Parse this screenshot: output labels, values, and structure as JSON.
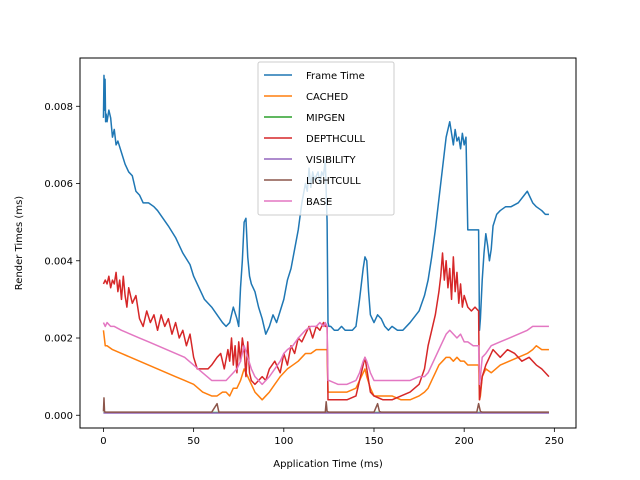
{
  "chart_data": {
    "type": "line",
    "xlabel": "Application Time (ms)",
    "ylabel": "Render Times (ms)",
    "xlim": [
      -13,
      262
    ],
    "ylim": [
      -0.00033,
      0.00925
    ],
    "xticks": [
      0,
      50,
      100,
      150,
      200,
      250
    ],
    "yticks": [
      0.0,
      0.002,
      0.004,
      0.006,
      0.008
    ],
    "xtick_labels": [
      "0",
      "50",
      "100",
      "150",
      "200",
      "250"
    ],
    "ytick_labels": [
      "0.000",
      "0.002",
      "0.004",
      "0.006",
      "0.008"
    ],
    "grid": false,
    "legend": "upper center",
    "series": [
      {
        "name": "Frame Time",
        "color": "#1f77b4",
        "x": [
          0,
          0.3,
          0.6,
          0.9,
          1.2,
          1.5,
          2,
          3,
          4,
          5,
          6,
          7,
          8,
          10,
          12,
          14,
          16,
          18,
          20,
          22,
          25,
          28,
          30,
          33,
          36,
          40,
          44,
          48,
          50,
          53,
          56,
          60,
          63,
          66,
          68,
          70,
          72,
          74,
          75,
          76,
          77,
          78,
          79,
          80,
          81,
          82,
          84,
          86,
          88,
          90,
          92,
          94,
          96,
          98,
          100,
          102,
          104,
          106,
          108,
          110,
          112,
          113,
          114,
          115,
          116,
          117,
          118,
          119,
          120,
          121,
          122,
          123,
          124,
          124.5,
          125,
          126,
          128,
          130,
          132,
          134,
          136,
          138,
          140,
          142,
          144,
          145,
          146,
          147,
          148,
          149,
          150,
          152,
          154,
          156,
          158,
          160,
          163,
          166,
          170,
          175,
          178,
          180,
          182,
          184,
          186,
          188,
          189,
          190,
          191,
          192,
          193,
          194,
          195,
          196,
          197,
          198,
          199,
          200,
          201,
          202,
          204,
          206,
          208,
          208.5,
          209,
          210,
          211,
          212,
          213,
          214,
          215,
          216,
          218,
          220,
          223,
          226,
          230,
          235,
          238,
          240,
          243,
          245,
          247
        ],
        "y": [
          0.0077,
          0.0088,
          0.0079,
          0.0087,
          0.0076,
          0.0078,
          0.0076,
          0.0079,
          0.0077,
          0.0072,
          0.0074,
          0.007,
          0.0071,
          0.0068,
          0.0065,
          0.0063,
          0.0062,
          0.0058,
          0.0057,
          0.0055,
          0.0055,
          0.0054,
          0.0053,
          0.0051,
          0.0049,
          0.0046,
          0.0042,
          0.0039,
          0.0036,
          0.0033,
          0.003,
          0.0028,
          0.0026,
          0.0024,
          0.0023,
          0.0024,
          0.0028,
          0.0025,
          0.0023,
          0.0033,
          0.004,
          0.005,
          0.0051,
          0.0041,
          0.0036,
          0.0034,
          0.0032,
          0.0028,
          0.0025,
          0.0021,
          0.0023,
          0.0026,
          0.0024,
          0.0027,
          0.003,
          0.0035,
          0.0038,
          0.0043,
          0.0048,
          0.0055,
          0.006,
          0.0058,
          0.0064,
          0.0059,
          0.0063,
          0.0061,
          0.0062,
          0.0063,
          0.006,
          0.0063,
          0.0062,
          0.0066,
          0.005,
          0.0024,
          0.0023,
          0.0023,
          0.0022,
          0.0022,
          0.0023,
          0.0022,
          0.0022,
          0.0022,
          0.0023,
          0.003,
          0.0038,
          0.0041,
          0.004,
          0.0032,
          0.0026,
          0.0025,
          0.0024,
          0.0026,
          0.0025,
          0.0023,
          0.0022,
          0.0023,
          0.0022,
          0.0022,
          0.0024,
          0.0027,
          0.0031,
          0.0035,
          0.0041,
          0.0048,
          0.0056,
          0.0064,
          0.0068,
          0.0072,
          0.0074,
          0.0076,
          0.0073,
          0.007,
          0.0074,
          0.0071,
          0.0072,
          0.0069,
          0.0073,
          0.007,
          0.0072,
          0.0048,
          0.0048,
          0.0048,
          0.0048,
          0.0022,
          0.0025,
          0.0035,
          0.0042,
          0.0047,
          0.0044,
          0.004,
          0.0043,
          0.0049,
          0.0052,
          0.0053,
          0.0054,
          0.0054,
          0.0055,
          0.0058,
          0.0055,
          0.0054,
          0.0053,
          0.0052,
          0.0052
        ]
      },
      {
        "name": "CACHED",
        "color": "#ff7f0e",
        "x": [
          0,
          0.5,
          1,
          2,
          5,
          10,
          15,
          20,
          25,
          30,
          35,
          40,
          45,
          50,
          55,
          60,
          63,
          66,
          68,
          70,
          72,
          74,
          76,
          78,
          80,
          82,
          84,
          86,
          88,
          90,
          92,
          95,
          98,
          100,
          102,
          105,
          108,
          110,
          112,
          115,
          118,
          120,
          122,
          123,
          124,
          124.5,
          125,
          130,
          135,
          140,
          142,
          144,
          145,
          146,
          148,
          150,
          155,
          160,
          165,
          170,
          175,
          178,
          180,
          182,
          184,
          186,
          188,
          190,
          192,
          194,
          196,
          198,
          200,
          202,
          205,
          208,
          208.5,
          209,
          210,
          212,
          215,
          220,
          225,
          230,
          235,
          238,
          240,
          243,
          245,
          247
        ],
        "y": [
          0.0022,
          0.002,
          0.0018,
          0.0018,
          0.0017,
          0.0016,
          0.0015,
          0.0014,
          0.0013,
          0.0012,
          0.0011,
          0.001,
          0.0009,
          0.0008,
          0.0006,
          0.0005,
          0.0005,
          0.0006,
          0.0006,
          0.0005,
          0.0007,
          0.0007,
          0.0009,
          0.0012,
          0.001,
          0.0008,
          0.0006,
          0.0005,
          0.0004,
          0.0005,
          0.0006,
          0.0008,
          0.001,
          0.0011,
          0.0012,
          0.0013,
          0.0014,
          0.0015,
          0.0016,
          0.0016,
          0.0017,
          0.0017,
          0.0017,
          0.0017,
          0.0017,
          0.0006,
          0.0006,
          0.0006,
          0.0006,
          0.0007,
          0.0009,
          0.0011,
          0.0012,
          0.001,
          0.0007,
          0.0005,
          0.0005,
          0.0005,
          0.0004,
          0.0004,
          0.0005,
          0.0006,
          0.0007,
          0.0009,
          0.0011,
          0.0013,
          0.0014,
          0.0015,
          0.0015,
          0.0014,
          0.0015,
          0.0014,
          0.0014,
          0.0013,
          0.0013,
          0.0013,
          0.0004,
          0.0005,
          0.001,
          0.0012,
          0.0011,
          0.0013,
          0.0014,
          0.0015,
          0.0016,
          0.0017,
          0.0018,
          0.0017,
          0.0017,
          0.0017
        ]
      },
      {
        "name": "MIPGEN",
        "color": "#2ca02c",
        "x": [
          0,
          50,
          100,
          150,
          200,
          247
        ],
        "y": [
          7e-05,
          7e-05,
          7e-05,
          7e-05,
          7e-05,
          7e-05
        ]
      },
      {
        "name": "DEPTHCULL",
        "color": "#d62728",
        "x": [
          0,
          1,
          2,
          3,
          4,
          5,
          6,
          7,
          8,
          9,
          10,
          11,
          12,
          13,
          14,
          16,
          18,
          20,
          22,
          24,
          26,
          28,
          30,
          32,
          34,
          36,
          38,
          40,
          42,
          44,
          46,
          48,
          50,
          52,
          55,
          58,
          60,
          63,
          65,
          67,
          69,
          70,
          71,
          72,
          73,
          74,
          75,
          76,
          77,
          78,
          79,
          80,
          81,
          82,
          84,
          86,
          88,
          90,
          92,
          95,
          98,
          100,
          102,
          104,
          106,
          108,
          110,
          112,
          114,
          116,
          118,
          120,
          122,
          123,
          124,
          124.5,
          125,
          130,
          135,
          140,
          142,
          144,
          145,
          146,
          148,
          150,
          155,
          160,
          165,
          170,
          175,
          178,
          180,
          182,
          184,
          186,
          187,
          188,
          189,
          190,
          191,
          192,
          193,
          194,
          195,
          196,
          197,
          198,
          199,
          200,
          202,
          204,
          206,
          208,
          208.5,
          209,
          210,
          212,
          214,
          216,
          218,
          220,
          224,
          228,
          232,
          236,
          240,
          243,
          245,
          247
        ],
        "y": [
          0.0034,
          0.0035,
          0.0034,
          0.0036,
          0.0033,
          0.0035,
          0.0034,
          0.0037,
          0.0032,
          0.0035,
          0.003,
          0.0036,
          0.0031,
          0.0028,
          0.0033,
          0.0029,
          0.0031,
          0.0025,
          0.0023,
          0.0027,
          0.0024,
          0.0026,
          0.0022,
          0.0026,
          0.0023,
          0.0025,
          0.0021,
          0.0024,
          0.002,
          0.0022,
          0.0018,
          0.0021,
          0.0015,
          0.0012,
          0.0012,
          0.0012,
          0.0013,
          0.0015,
          0.0016,
          0.0012,
          0.0017,
          0.0014,
          0.002,
          0.0013,
          0.0018,
          0.0011,
          0.0019,
          0.0014,
          0.002,
          0.0017,
          0.001,
          0.0019,
          0.0011,
          0.0009,
          0.0008,
          0.0009,
          0.001,
          0.0009,
          0.0012,
          0.0014,
          0.0011,
          0.0016,
          0.0013,
          0.0018,
          0.0016,
          0.002,
          0.0019,
          0.0021,
          0.0023,
          0.002,
          0.0023,
          0.0022,
          0.0024,
          0.0023,
          0.0023,
          0.0004,
          0.0004,
          0.0004,
          0.0004,
          0.0005,
          0.0009,
          0.0013,
          0.0015,
          0.0012,
          0.0006,
          0.0005,
          0.0004,
          0.0004,
          0.0005,
          0.0006,
          0.0008,
          0.0012,
          0.0018,
          0.0022,
          0.0026,
          0.0032,
          0.0036,
          0.0042,
          0.0035,
          0.004,
          0.0033,
          0.0038,
          0.003,
          0.0041,
          0.0032,
          0.0037,
          0.0029,
          0.0034,
          0.0028,
          0.0031,
          0.0028,
          0.0027,
          0.0028,
          0.0027,
          0.0004,
          0.0006,
          0.001,
          0.0013,
          0.0015,
          0.0017,
          0.0016,
          0.0015,
          0.0017,
          0.0016,
          0.0014,
          0.0015,
          0.0013,
          0.0012,
          0.0011,
          0.001
        ]
      },
      {
        "name": "VISIBILITY",
        "color": "#9467bd",
        "x": [
          0,
          50,
          100,
          150,
          200,
          247
        ],
        "y": [
          6e-05,
          6e-05,
          6e-05,
          6e-05,
          6e-05,
          6e-05
        ]
      },
      {
        "name": "LIGHTCULL",
        "color": "#8c564b",
        "x": [
          0,
          0.3,
          0.6,
          1,
          2,
          20,
          40,
          60,
          63,
          64,
          65,
          80,
          100,
          120,
          123,
          123.5,
          124,
          125,
          140,
          150,
          152,
          153,
          154,
          170,
          190,
          207,
          208,
          209,
          210,
          230,
          247
        ],
        "y": [
          0.0001,
          0.00045,
          0.0001,
          8e-05,
          8e-05,
          8e-05,
          8e-05,
          8e-05,
          0.0003,
          8e-05,
          8e-05,
          8e-05,
          8e-05,
          8e-05,
          8e-05,
          0.00035,
          0.0001,
          8e-05,
          8e-05,
          8e-05,
          0.0003,
          0.0001,
          8e-05,
          8e-05,
          8e-05,
          8e-05,
          0.0003,
          0.0001,
          8e-05,
          8e-05,
          8e-05
        ]
      },
      {
        "name": "BASE",
        "color": "#e377c2",
        "x": [
          0,
          1,
          2,
          4,
          6,
          10,
          15,
          20,
          25,
          30,
          35,
          40,
          45,
          50,
          55,
          60,
          65,
          68,
          70,
          72,
          74,
          76,
          78,
          80,
          82,
          84,
          86,
          88,
          90,
          92,
          95,
          98,
          100,
          102,
          105,
          108,
          110,
          112,
          115,
          118,
          120,
          122,
          123,
          124,
          124.5,
          125,
          130,
          135,
          140,
          142,
          144,
          145,
          146,
          148,
          150,
          155,
          160,
          165,
          170,
          175,
          178,
          180,
          182,
          184,
          186,
          188,
          190,
          192,
          194,
          196,
          198,
          200,
          202,
          205,
          208,
          208.5,
          209,
          210,
          212,
          215,
          220,
          225,
          230,
          235,
          238,
          240,
          243,
          245,
          247
        ],
        "y": [
          0.0024,
          0.0023,
          0.0024,
          0.0023,
          0.0023,
          0.0022,
          0.0021,
          0.002,
          0.0019,
          0.0018,
          0.0017,
          0.0016,
          0.0015,
          0.0013,
          0.0011,
          0.0009,
          0.0009,
          0.0009,
          0.001,
          0.0011,
          0.0012,
          0.0014,
          0.0018,
          0.0015,
          0.0012,
          0.001,
          0.0009,
          0.0008,
          0.0009,
          0.001,
          0.0012,
          0.0014,
          0.0016,
          0.0017,
          0.0018,
          0.002,
          0.0021,
          0.0022,
          0.0023,
          0.0023,
          0.0024,
          0.0023,
          0.0024,
          0.0023,
          0.0009,
          0.0009,
          0.0008,
          0.0008,
          0.0009,
          0.0011,
          0.0014,
          0.0015,
          0.0014,
          0.0011,
          0.0009,
          0.0009,
          0.0009,
          0.0009,
          0.0009,
          0.001,
          0.001,
          0.0011,
          0.0013,
          0.0015,
          0.0017,
          0.0019,
          0.0021,
          0.0022,
          0.0021,
          0.002,
          0.0021,
          0.0019,
          0.0019,
          0.0018,
          0.0018,
          0.0008,
          0.001,
          0.0015,
          0.0016,
          0.0018,
          0.0019,
          0.002,
          0.0021,
          0.0022,
          0.0023,
          0.0023,
          0.0023,
          0.0023,
          0.0023
        ]
      }
    ]
  }
}
